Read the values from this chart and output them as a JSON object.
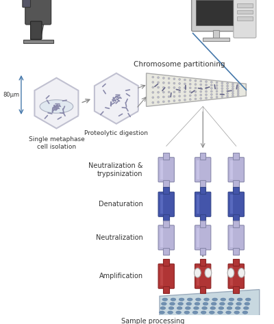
{
  "figure_width": 4.0,
  "figure_height": 4.73,
  "dpi": 100,
  "background": "#ffffff",
  "labels": {
    "chromosome_partitioning": "Chromosome partitioning",
    "single_metaphase": "Single metaphase\ncell isolation",
    "proteolytic": "Proteolytic digestion",
    "neutralization_tryp": "Neutralization &\ntrypsinization",
    "denaturation": "Denaturation",
    "neutralization": "Neutralization",
    "amplification": "Amplification",
    "sample_processing": "Sample processing",
    "80um": "80μm"
  },
  "colors": {
    "light_purple": "#b0aed0",
    "dark_blue": "#3a4a8a",
    "red_brown": "#b03030",
    "microfluidic_bg": "#e8e8e8",
    "hexagon_fill": "#f0f0f5",
    "hexagon_stroke": "#c0c0d0",
    "microscope_dark": "#555555",
    "microscope_light": "#888888",
    "computer_body": "#cccccc",
    "computer_screen": "#333333",
    "arrow_color": "#4477aa",
    "text_color": "#333333",
    "bracket_color": "#4477aa",
    "plate_bg": "#c8d8e8",
    "well_color": "#7090b0"
  }
}
